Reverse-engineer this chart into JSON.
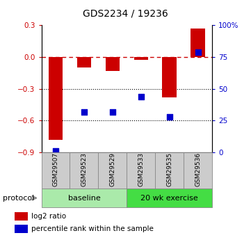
{
  "title": "GDS2234 / 19236",
  "samples": [
    "GSM29507",
    "GSM29523",
    "GSM29529",
    "GSM29533",
    "GSM29535",
    "GSM29536"
  ],
  "log2_ratio": [
    -0.78,
    -0.1,
    -0.13,
    -0.025,
    -0.38,
    0.27
  ],
  "percentile_rank": [
    1.0,
    32.0,
    32.0,
    44.0,
    28.0,
    79.0
  ],
  "ylim_left": [
    -0.9,
    0.3
  ],
  "ylim_right": [
    0,
    100
  ],
  "yticks_left": [
    -0.9,
    -0.6,
    -0.3,
    0.0,
    0.3
  ],
  "yticks_right": [
    0,
    25,
    50,
    75,
    100
  ],
  "ytick_labels_right": [
    "0",
    "25",
    "50",
    "75",
    "100%"
  ],
  "hlines_dotted": [
    -0.3,
    -0.6
  ],
  "protocol_groups": [
    {
      "label": "baseline",
      "start": 0,
      "end": 3,
      "color": "#aaeaaa"
    },
    {
      "label": "20 wk exercise",
      "start": 3,
      "end": 6,
      "color": "#44dd44"
    }
  ],
  "bar_color": "#cc0000",
  "dot_color": "#0000cc",
  "dashed_line_color": "#cc0000",
  "tick_label_color_left": "#cc0000",
  "tick_label_color_right": "#0000cc",
  "bar_width": 0.5,
  "dot_size": 30,
  "legend_items": [
    {
      "color": "#cc0000",
      "label": "log2 ratio"
    },
    {
      "color": "#0000cc",
      "label": "percentile rank within the sample"
    }
  ]
}
